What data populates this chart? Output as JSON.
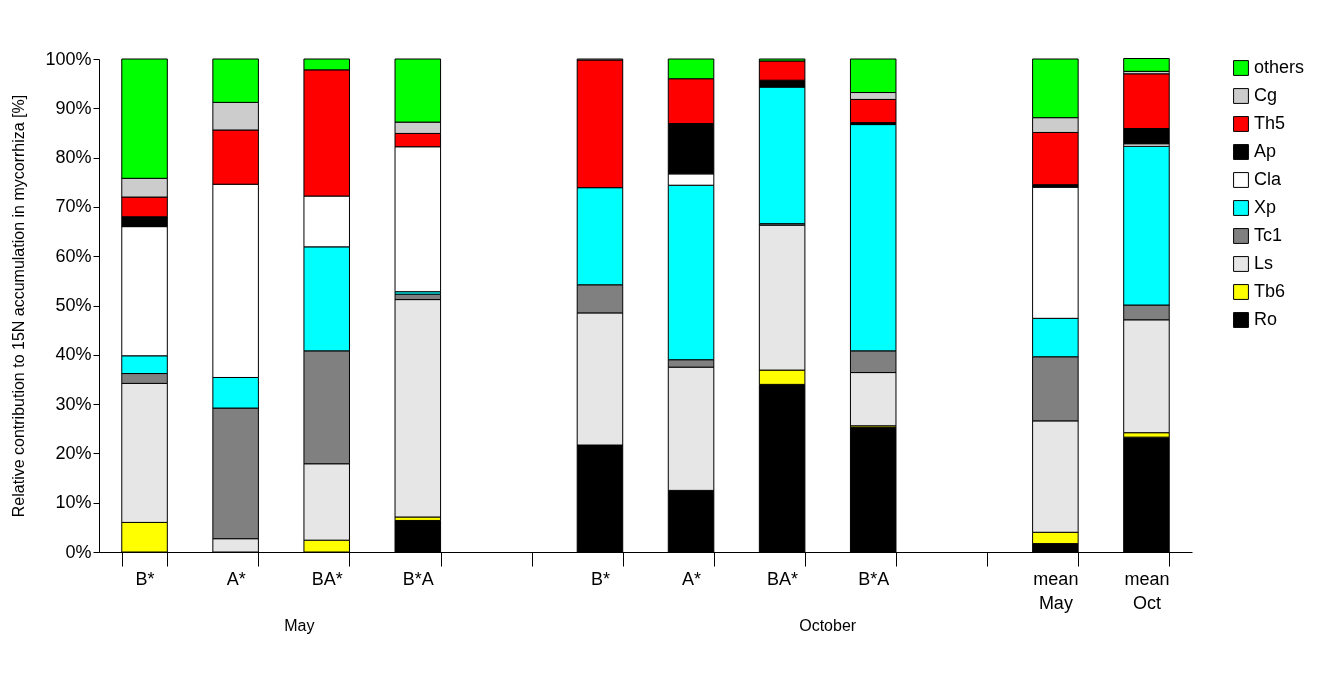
{
  "chart_data": {
    "type": "bar",
    "stacked": true,
    "ylabel": "Relative contribution to 15N accumulation  in mycorrhiza [%]",
    "categories": [
      "B*",
      "A*",
      "BA*",
      "B*A",
      null,
      "B*",
      "A*",
      "BA*",
      "B*A",
      null,
      "mean May",
      "mean Oct"
    ],
    "ylim": [
      0,
      100
    ],
    "yticks": [
      {
        "value": 0,
        "label": "0%"
      },
      {
        "value": 10,
        "label": "10%"
      },
      {
        "value": 20,
        "label": "20%"
      },
      {
        "value": 30,
        "label": "30%"
      },
      {
        "value": 40,
        "label": "40%"
      },
      {
        "value": 50,
        "label": "50%"
      },
      {
        "value": 60,
        "label": "60%"
      },
      {
        "value": 70,
        "label": "70%"
      },
      {
        "value": 80,
        "label": "80%"
      },
      {
        "value": 90,
        "label": "90%"
      },
      {
        "value": 100,
        "label": "100%"
      }
    ],
    "grid": false,
    "legend": "right",
    "annotations": [
      "May",
      "October"
    ],
    "series": [
      {
        "name": "Ro",
        "color": "#000000",
        "values": [
          null,
          null,
          null,
          6.4,
          null,
          21.7,
          12.5,
          34,
          25.3,
          null,
          1.7,
          23.3
        ]
      },
      {
        "name": "Tb6",
        "color": "#ffff00",
        "values": [
          6,
          null,
          2.4,
          0.7,
          null,
          null,
          null,
          2.9,
          0.3,
          null,
          2.3,
          0.9
        ]
      },
      {
        "name": "Ls",
        "color": "#e6e6e6",
        "values": [
          28.2,
          2.7,
          15.5,
          44.1,
          null,
          26.8,
          25,
          29.4,
          10.8,
          null,
          22.6,
          22.9
        ]
      },
      {
        "name": "Tc1",
        "color": "#808080",
        "values": [
          2,
          26.5,
          22.9,
          1.1,
          null,
          5.7,
          1.5,
          0.3,
          4.4,
          null,
          13,
          3
        ]
      },
      {
        "name": "Xp",
        "color": "#00ffff",
        "values": [
          3.6,
          6.2,
          21.1,
          0.5,
          null,
          19.7,
          35.4,
          27.7,
          45.9,
          null,
          7.8,
          32.2
        ]
      },
      {
        "name": "Cla",
        "color": "#ffffff",
        "values": [
          26.2,
          39.2,
          10.3,
          29.4,
          null,
          null,
          2.3,
          null,
          null,
          null,
          26.6,
          0.5
        ]
      },
      {
        "name": "Ap",
        "color": "#000000",
        "values": [
          2,
          null,
          null,
          null,
          null,
          null,
          10.2,
          1.4,
          0.4,
          null,
          0.5,
          3.1
        ]
      },
      {
        "name": "Th5",
        "color": "#ff0000",
        "values": [
          4,
          11,
          25.6,
          2.7,
          null,
          25.9,
          9.1,
          3.9,
          4.7,
          null,
          10.6,
          11.1
        ]
      },
      {
        "name": "Cg",
        "color": "#cccccc",
        "values": [
          3.8,
          5.6,
          null,
          2.3,
          null,
          0.2,
          null,
          null,
          1.4,
          null,
          3,
          0.5
        ]
      },
      {
        "name": "others",
        "color": "#00ff00",
        "values": [
          24.2,
          8.8,
          2.2,
          12.8,
          null,
          null,
          4,
          0.4,
          6.8,
          null,
          11.9,
          2.6
        ]
      }
    ]
  }
}
